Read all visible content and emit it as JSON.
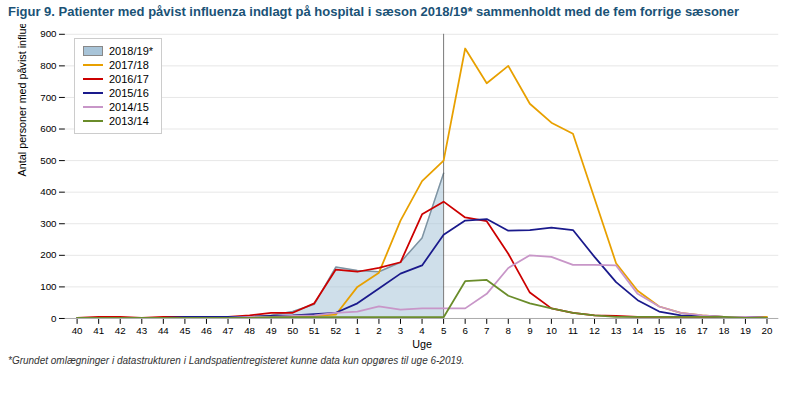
{
  "chart_data": {
    "type": "line",
    "title": "Figur 9. Patienter med påvist influenza indlagt på hospital i sæson  2018/19* sammenholdt med de fem forrige sæsoner",
    "caption": "*Grundet omlægninger i datastrukturen i Landspatientregisteret kunne data kun opgøres til uge 6-2019.",
    "xlabel": "Uge",
    "ylabel": "Antal personer med påvist influenza",
    "categories": [
      "40",
      "41",
      "42",
      "43",
      "44",
      "45",
      "46",
      "47",
      "48",
      "49",
      "50",
      "51",
      "52",
      "1",
      "2",
      "3",
      "4",
      "5",
      "6",
      "7",
      "8",
      "9",
      "10",
      "11",
      "12",
      "13",
      "14",
      "15",
      "16",
      "17",
      "18",
      "19",
      "20"
    ],
    "series": [
      {
        "name": "2018/19*",
        "type": "area",
        "color": "#a8c4d8",
        "values": [
          0,
          0,
          0,
          0,
          1,
          1,
          1,
          2,
          5,
          10,
          22,
          45,
          163,
          152,
          148,
          178,
          255,
          460,
          null,
          null,
          null,
          null,
          null,
          null,
          null,
          null,
          null,
          null,
          null,
          null,
          null,
          null,
          null
        ]
      },
      {
        "name": "2017/18",
        "color": "#e8a000",
        "values": [
          2,
          2,
          2,
          2,
          2,
          2,
          2,
          2,
          3,
          5,
          5,
          8,
          12,
          100,
          145,
          310,
          435,
          500,
          855,
          745,
          800,
          680,
          620,
          585,
          380,
          175,
          88,
          38,
          18,
          10,
          5,
          5,
          5
        ]
      },
      {
        "name": "2016/17",
        "color": "#cc0000",
        "values": [
          2,
          5,
          5,
          2,
          5,
          5,
          5,
          5,
          10,
          18,
          18,
          48,
          155,
          148,
          160,
          178,
          330,
          370,
          320,
          308,
          205,
          82,
          32,
          18,
          10,
          8,
          5,
          5,
          5,
          5,
          5,
          2,
          2
        ]
      },
      {
        "name": "2015/16",
        "color": "#1a1a8c",
        "values": [
          2,
          2,
          2,
          2,
          2,
          5,
          5,
          5,
          5,
          8,
          10,
          14,
          18,
          48,
          95,
          142,
          168,
          265,
          310,
          315,
          278,
          280,
          288,
          280,
          195,
          115,
          58,
          22,
          10,
          8,
          5,
          5,
          2
        ]
      },
      {
        "name": "2014/15",
        "color": "#c896c8",
        "values": [
          2,
          2,
          2,
          2,
          2,
          2,
          2,
          2,
          5,
          5,
          8,
          10,
          18,
          22,
          38,
          28,
          32,
          32,
          32,
          78,
          160,
          200,
          195,
          170,
          170,
          168,
          78,
          38,
          18,
          10,
          5,
          5,
          2
        ]
      },
      {
        "name": "2013/14",
        "color": "#6a8c2a",
        "values": [
          2,
          2,
          2,
          2,
          2,
          2,
          2,
          2,
          2,
          4,
          4,
          4,
          4,
          4,
          4,
          4,
          4,
          4,
          118,
          122,
          72,
          48,
          32,
          18,
          10,
          5,
          5,
          5,
          5,
          5,
          5,
          2,
          2
        ]
      }
    ],
    "ylim": [
      0,
      900
    ],
    "yticks": [
      0,
      100,
      200,
      300,
      400,
      500,
      600,
      700,
      800,
      900
    ],
    "grid": true,
    "legend": "upper left"
  }
}
